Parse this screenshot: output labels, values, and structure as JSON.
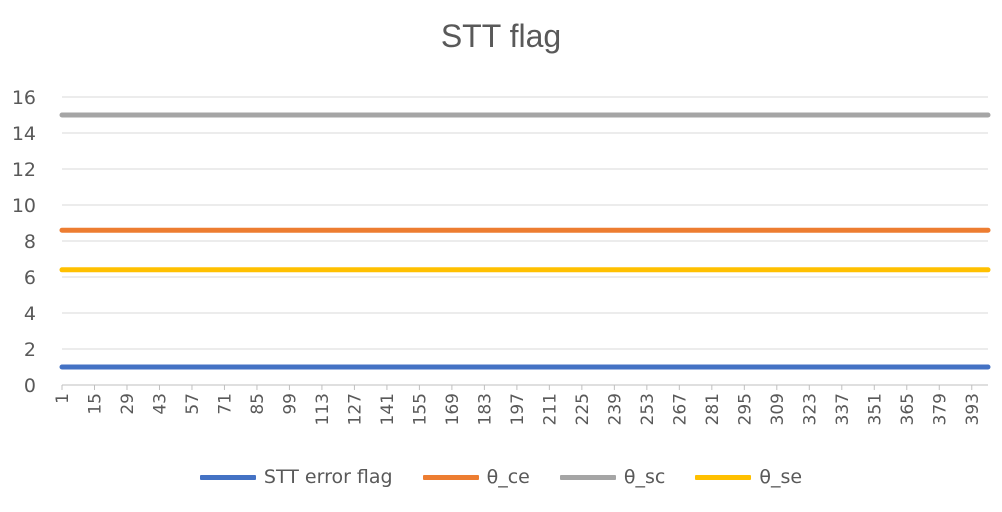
{
  "chart_data": {
    "type": "line",
    "title": "STT flag",
    "xlabel": "",
    "ylabel": "",
    "x_tick_labels": [
      "1",
      "15",
      "29",
      "43",
      "57",
      "71",
      "85",
      "99",
      "113",
      "127",
      "141",
      "155",
      "169",
      "183",
      "197",
      "211",
      "225",
      "239",
      "253",
      "267",
      "281",
      "295",
      "309",
      "323",
      "337",
      "351",
      "365",
      "379",
      "393"
    ],
    "x_range": [
      1,
      400
    ],
    "ylim": [
      0,
      16
    ],
    "y_ticks": [
      "0",
      "2",
      "4",
      "6",
      "8",
      "10",
      "12",
      "14",
      "16"
    ],
    "grid": true,
    "legend_position": "bottom",
    "series": [
      {
        "name": "STT error flag",
        "color": "#4472C4",
        "values": [
          1,
          1
        ]
      },
      {
        "name": "θ_ce",
        "color": "#ED7D31",
        "values": [
          8.6,
          8.6
        ]
      },
      {
        "name": "θ_sc",
        "color": "#A5A5A5",
        "values": [
          15,
          15
        ]
      },
      {
        "name": "θ_se",
        "color": "#FFC000",
        "values": [
          6.4,
          6.4
        ]
      }
    ],
    "series_x": [
      1,
      400
    ]
  }
}
